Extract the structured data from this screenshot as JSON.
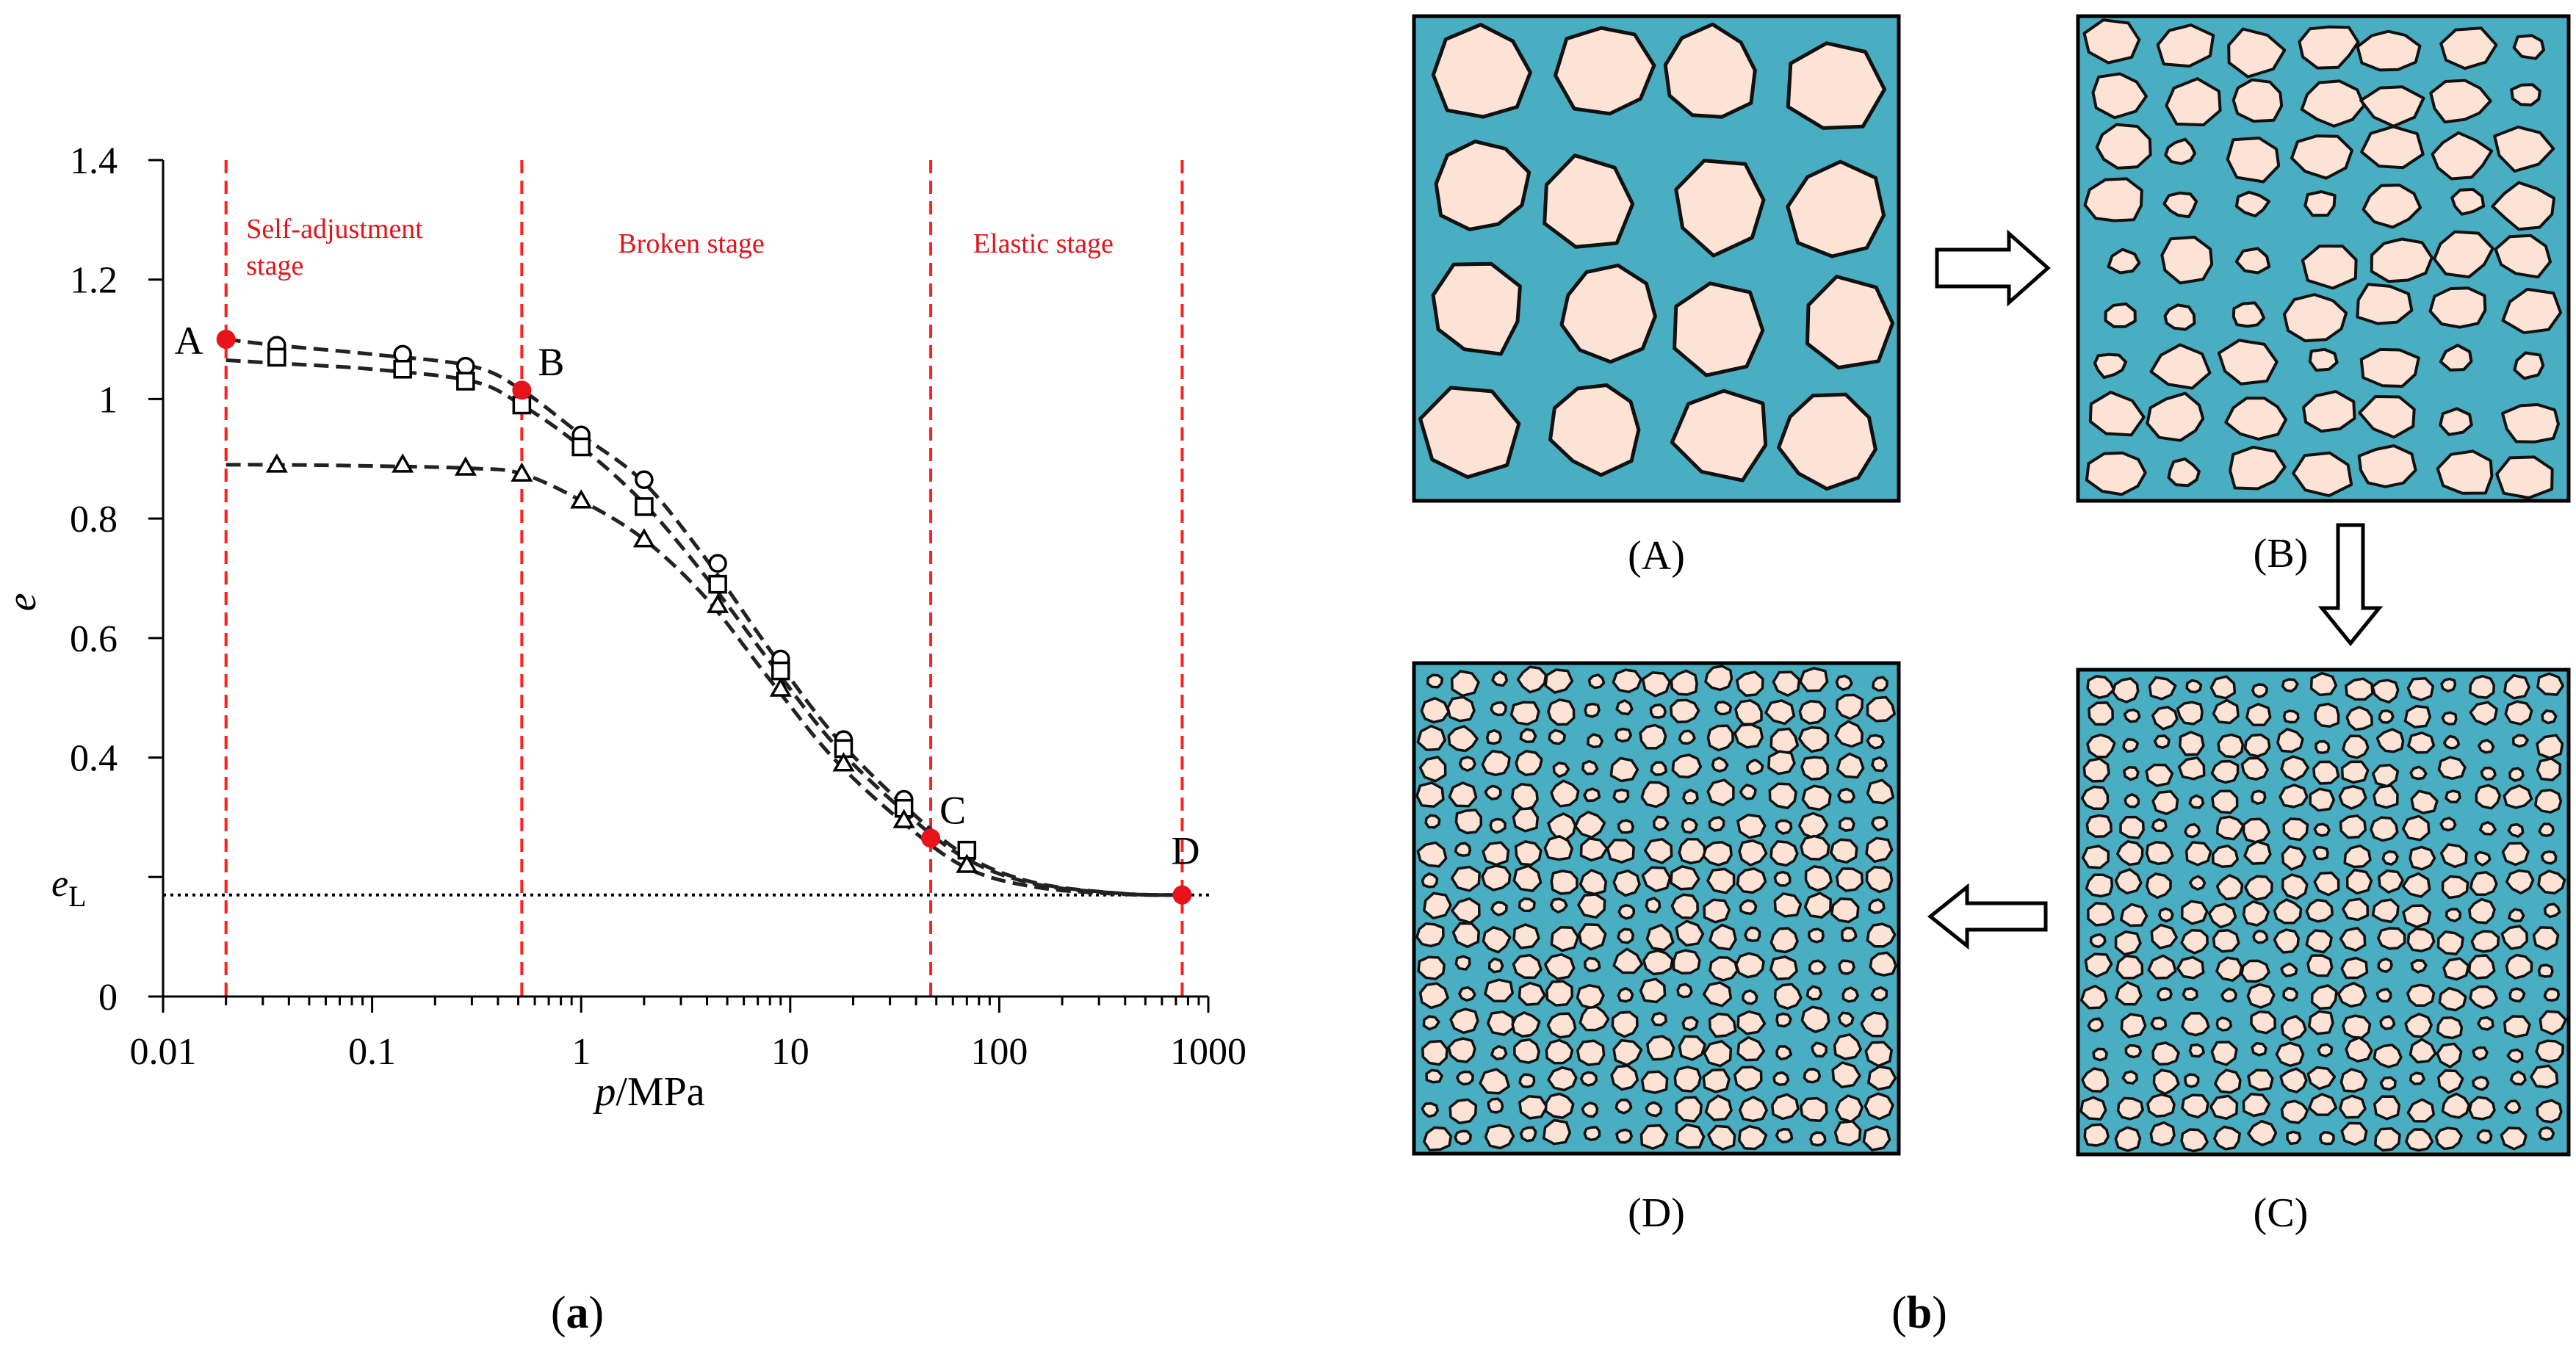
{
  "chart_data": {
    "type": "scatter",
    "xscale": "log",
    "xlim": [
      0.01,
      1000
    ],
    "ylim": [
      0,
      1.4
    ],
    "xlabel_prefix": "p",
    "xlabel_suffix": "/MPa",
    "ylabel": "e",
    "x_ticks": [
      {
        "value": 0.01,
        "label": "0.01"
      },
      {
        "value": 0.1,
        "label": "0.1"
      },
      {
        "value": 1,
        "label": "1"
      },
      {
        "value": 10,
        "label": "10"
      },
      {
        "value": 100,
        "label": "100"
      },
      {
        "value": 1000,
        "label": "1000"
      }
    ],
    "y_ticks": [
      {
        "value": 0,
        "label": "0"
      },
      {
        "value": 0.4,
        "label": "0.4"
      },
      {
        "value": 0.6,
        "label": "0.6"
      },
      {
        "value": 0.8,
        "label": "0.8"
      },
      {
        "value": 1.0,
        "label": "1"
      },
      {
        "value": 1.2,
        "label": "1.2"
      },
      {
        "value": 1.4,
        "label": "1.4"
      }
    ],
    "eL": {
      "value": 0.17,
      "label_main": "e",
      "label_sub": "L"
    },
    "stage_boundaries": [
      0.02,
      0.52,
      47,
      750
    ],
    "stages": [
      {
        "line1": "Self-adjustment",
        "line2": "stage",
        "x": 0.025,
        "y": 1.27
      },
      {
        "line1": "Broken stage",
        "line2": "",
        "x": 1.5,
        "y": 1.245
      },
      {
        "line1": "Elastic stage",
        "line2": "",
        "x": 75,
        "y": 1.245
      }
    ],
    "key_points": [
      {
        "label": "A",
        "x": 0.02,
        "y": 1.1
      },
      {
        "label": "B",
        "x": 0.52,
        "y": 1.015
      },
      {
        "label": "C",
        "x": 47,
        "y": 0.265
      },
      {
        "label": "D",
        "x": 750,
        "y": 0.17
      }
    ],
    "series": [
      {
        "name": "circle",
        "marker": "circle",
        "x": [
          0.035,
          0.14,
          0.28,
          1.0,
          2.0,
          4.5,
          9.0,
          18.0,
          35.0
        ],
        "y": [
          1.09,
          1.075,
          1.055,
          0.94,
          0.865,
          0.725,
          0.565,
          0.43,
          0.33
        ],
        "curve_x": [
          0.02,
          0.035,
          0.1,
          0.3,
          0.52,
          1,
          2,
          4,
          8,
          16,
          35,
          70,
          150,
          400,
          750
        ],
        "curve_y": [
          1.1,
          1.09,
          1.075,
          1.055,
          1.015,
          0.94,
          0.86,
          0.73,
          0.58,
          0.44,
          0.32,
          0.235,
          0.19,
          0.172,
          0.17
        ]
      },
      {
        "name": "square",
        "marker": "square",
        "x": [
          0.035,
          0.14,
          0.28,
          0.52,
          1.0,
          2.0,
          4.5,
          9.0,
          18.0,
          35.0,
          70.0
        ],
        "y": [
          1.07,
          1.05,
          1.03,
          0.99,
          0.92,
          0.82,
          0.69,
          0.545,
          0.415,
          0.315,
          0.245
        ],
        "curve_x": [
          0.02,
          0.035,
          0.1,
          0.3,
          0.52,
          1,
          2,
          4,
          8,
          16,
          35,
          70,
          150,
          400,
          750
        ],
        "curve_y": [
          1.065,
          1.06,
          1.05,
          1.03,
          0.99,
          0.92,
          0.825,
          0.7,
          0.56,
          0.425,
          0.31,
          0.23,
          0.188,
          0.172,
          0.17
        ]
      },
      {
        "name": "triangle",
        "marker": "triangle",
        "x": [
          0.035,
          0.14,
          0.28,
          0.52,
          1.0,
          2.0,
          4.5,
          9.0,
          18.0,
          35.0,
          70.0
        ],
        "y": [
          0.89,
          0.89,
          0.885,
          0.875,
          0.83,
          0.765,
          0.655,
          0.515,
          0.39,
          0.295,
          0.22
        ],
        "curve_x": [
          0.02,
          0.035,
          0.1,
          0.3,
          0.52,
          1,
          2,
          4,
          8,
          16,
          35,
          70,
          150,
          400,
          750
        ],
        "curve_y": [
          0.89,
          0.89,
          0.888,
          0.884,
          0.875,
          0.83,
          0.765,
          0.665,
          0.53,
          0.4,
          0.29,
          0.215,
          0.183,
          0.171,
          0.17
        ]
      }
    ]
  },
  "panels": [
    {
      "caption": "(A)",
      "grain_size": "coarse"
    },
    {
      "caption": "(B)",
      "grain_size": "broken"
    },
    {
      "caption": "(C)",
      "grain_size": "fine"
    },
    {
      "caption": "(D)",
      "grain_size": "finest"
    }
  ],
  "subfig_labels": {
    "a": "a",
    "b": "b"
  },
  "colors": {
    "pore": "#4aaec2",
    "grain": "#fde3d5",
    "stage": "#ff2020",
    "key_point": "#e8141b"
  }
}
